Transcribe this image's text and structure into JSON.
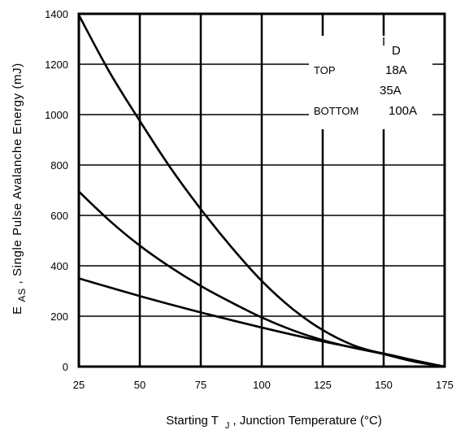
{
  "chart_data": {
    "type": "line",
    "title": "",
    "xlabel": {
      "prefix": "Starting T",
      "sub": "J",
      "suffix": ", Junction Temperature (°C)"
    },
    "ylabel": {
      "prefix": "E",
      "sub": "AS",
      "suffix": ", Single Pulse Avalanche Energy (mJ)"
    },
    "xlim": [
      25,
      175
    ],
    "ylim": [
      0,
      1400
    ],
    "xticks": [
      "25",
      "50",
      "75",
      "100",
      "125",
      "150",
      "175"
    ],
    "yticks": [
      "0",
      "200",
      "400",
      "600",
      "800",
      "1000",
      "1200",
      "1400"
    ],
    "grid": true,
    "legend": {
      "header_main": "I",
      "header_sub": "D",
      "top_label": "TOP",
      "bottom_label": "BOTTOM",
      "entries": [
        "18A",
        "35A",
        "100A"
      ],
      "placement": "top-right"
    },
    "series": [
      {
        "name": "18A",
        "x": [
          25,
          37.5,
          50,
          62.5,
          75,
          87.5,
          100,
          112.5,
          125,
          137.5,
          150,
          162.5,
          175
        ],
        "y": [
          1395,
          1170,
          975,
          790,
          625,
          475,
          340,
          230,
          145,
          85,
          50,
          20,
          0
        ]
      },
      {
        "name": "35A",
        "x": [
          25,
          37.5,
          50,
          62.5,
          75,
          87.5,
          100,
          112.5,
          125,
          137.5,
          150,
          162.5,
          175
        ],
        "y": [
          695,
          580,
          480,
          395,
          320,
          255,
          195,
          145,
          105,
          75,
          50,
          22,
          0
        ]
      },
      {
        "name": "100A",
        "x": [
          25,
          50,
          75,
          100,
          125,
          150,
          162.5,
          175
        ],
        "y": [
          350,
          280,
          215,
          155,
          100,
          52,
          25,
          0
        ]
      }
    ],
    "colors": {
      "line": "#000000",
      "grid": "#000000",
      "background": "#ffffff"
    }
  }
}
